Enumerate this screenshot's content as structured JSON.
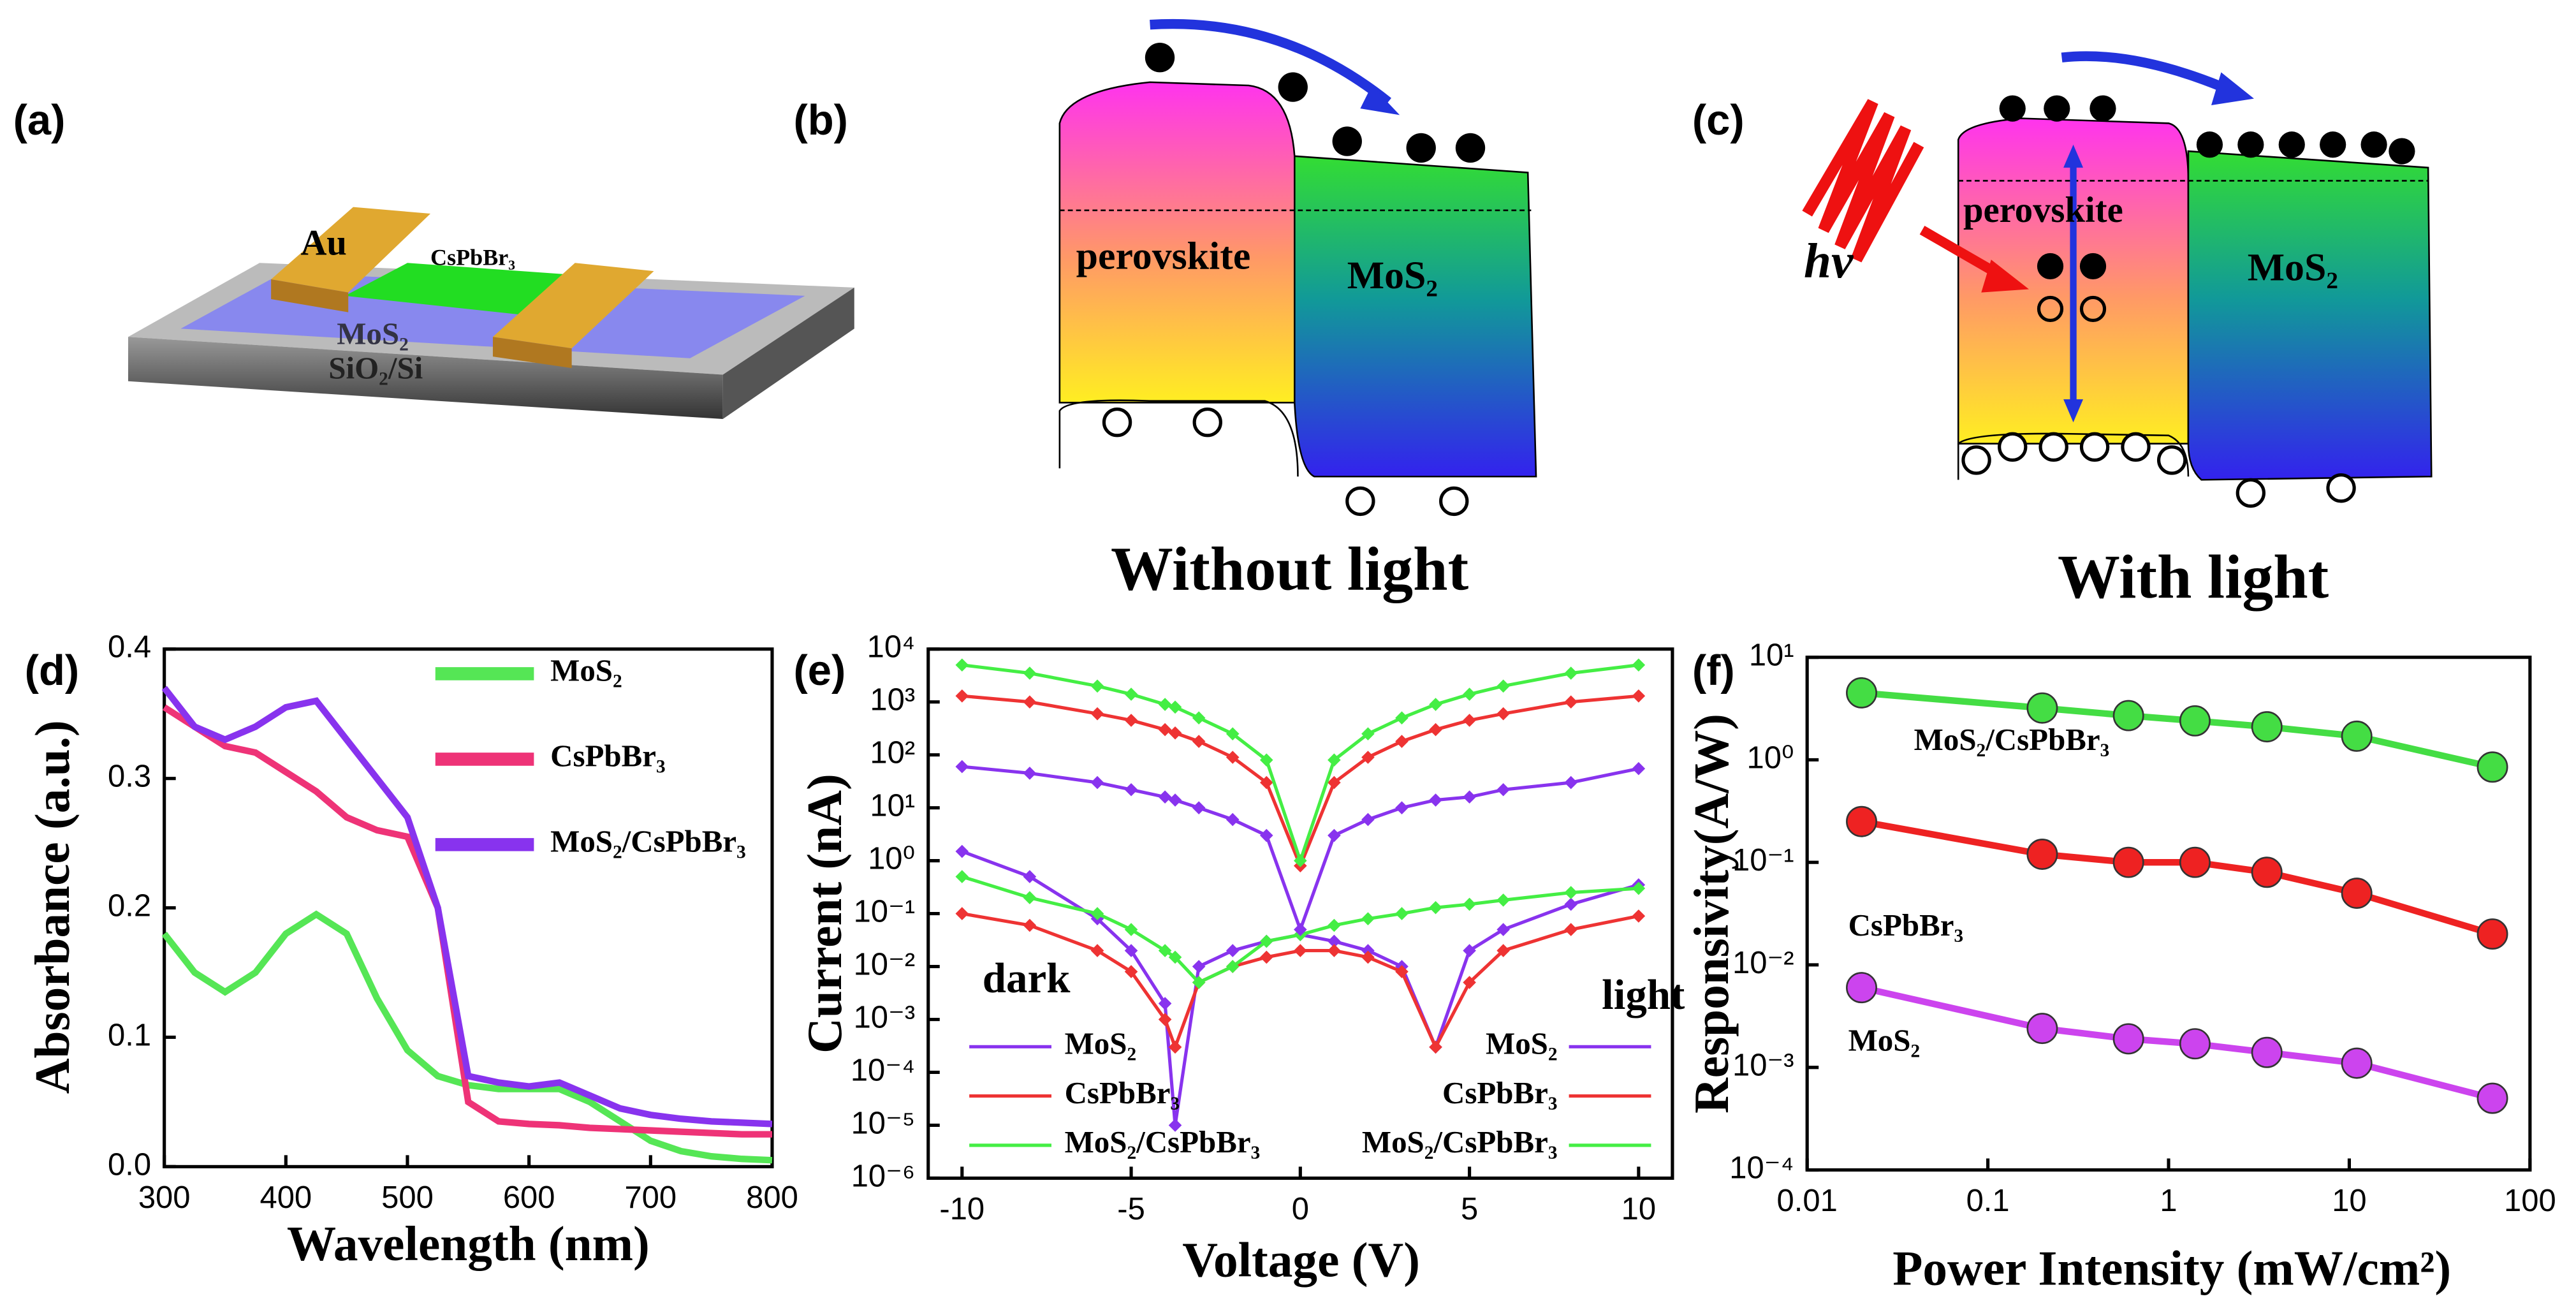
{
  "panels": {
    "a": {
      "label": "(a)",
      "texts": [
        "Au",
        "CsPbBr₃",
        "MoS₂",
        "SiO₂/Si"
      ]
    },
    "b": {
      "label": "(b)",
      "texts": [
        "perovskite",
        "MoS₂"
      ],
      "caption": "Without light"
    },
    "c": {
      "label": "(c)",
      "texts": [
        "perovskite",
        "MoS₂",
        "hv"
      ],
      "caption": "With light"
    }
  },
  "chart_data": [
    {
      "type": "line",
      "label": "(d)",
      "xlabel": "Wavelength (nm)",
      "ylabel": "Absorbance (a.u.)",
      "x": [
        300,
        325,
        350,
        375,
        400,
        425,
        450,
        475,
        500,
        525,
        550,
        575,
        600,
        625,
        650,
        675,
        700,
        725,
        750,
        775,
        800
      ],
      "xlim": [
        300,
        800
      ],
      "xticks": [
        300,
        400,
        500,
        600,
        700,
        800
      ],
      "ylim": [
        0,
        0.4
      ],
      "yticks": [
        {
          "value": 0,
          "label": "0.0"
        },
        0.1,
        0.2,
        0.3,
        0.4
      ],
      "series": [
        {
          "name": "MoS₂",
          "color": "#55e655",
          "values": [
            0.18,
            0.15,
            0.135,
            0.15,
            0.18,
            0.195,
            0.18,
            0.13,
            0.09,
            0.07,
            0.063,
            0.06,
            0.06,
            0.06,
            0.05,
            0.035,
            0.02,
            0.012,
            0.008,
            0.006,
            0.005
          ]
        },
        {
          "name": "CsPbBr₃",
          "color": "#ee3377",
          "values": [
            0.355,
            0.34,
            0.325,
            0.32,
            0.305,
            0.29,
            0.27,
            0.26,
            0.255,
            0.2,
            0.05,
            0.035,
            0.033,
            0.032,
            0.03,
            0.029,
            0.028,
            0.027,
            0.026,
            0.025,
            0.025
          ]
        },
        {
          "name": "MoS₂/CsPbBr₃",
          "color": "#8833ee",
          "values": [
            0.37,
            0.34,
            0.33,
            0.34,
            0.355,
            0.36,
            0.33,
            0.3,
            0.27,
            0.2,
            0.07,
            0.065,
            0.062,
            0.065,
            0.055,
            0.045,
            0.04,
            0.037,
            0.035,
            0.034,
            0.033
          ]
        }
      ]
    },
    {
      "type": "line",
      "label": "(e)",
      "xlabel": "Voltage (V)",
      "ylabel": "Current (nA)",
      "log_y": true,
      "marker": "diamond",
      "x": [
        -10,
        -8,
        -6,
        -5,
        -4,
        -3.7,
        -3,
        -2,
        -1,
        0,
        1,
        2,
        3,
        4,
        5,
        6,
        8,
        10
      ],
      "xlim": [
        -11,
        11
      ],
      "xticks": [
        -10,
        -5,
        0,
        5,
        10
      ],
      "ylim": [
        1e-06,
        10000
      ],
      "yticks": [
        {
          "value": 1e-06,
          "label": "10⁻⁶"
        },
        {
          "value": 1e-05,
          "label": "10⁻⁵"
        },
        {
          "value": 0.0001,
          "label": "10⁻⁴"
        },
        {
          "value": 0.001,
          "label": "10⁻³"
        },
        {
          "value": 0.01,
          "label": "10⁻²"
        },
        {
          "value": 0.1,
          "label": "10⁻¹"
        },
        {
          "value": 1,
          "label": "10⁰"
        },
        {
          "value": 10,
          "label": "10¹"
        },
        {
          "value": 100,
          "label": "10²"
        },
        {
          "value": 1000,
          "label": "10³"
        },
        {
          "value": 10000,
          "label": "10⁴"
        }
      ],
      "annotations": [
        "dark",
        "light"
      ],
      "series": [
        {
          "name": "MoS₂",
          "color": "#8833ee",
          "values": [
            1.5,
            0.5,
            0.08,
            0.02,
            0.002,
            1e-05,
            0.01,
            0.02,
            0.03,
            0.04,
            0.03,
            0.02,
            0.01,
            0.0003,
            0.02,
            0.05,
            0.15,
            0.35
          ]
        },
        {
          "name": "CsPbBr₃",
          "color": "#ee3333",
          "values": [
            0.1,
            0.06,
            0.02,
            0.008,
            0.001,
            0.0003,
            0.005,
            0.01,
            0.015,
            0.02,
            0.02,
            0.015,
            0.008,
            0.0003,
            0.005,
            0.02,
            0.05,
            0.09
          ]
        },
        {
          "name": "MoS₂/CsPbBr₃",
          "color": "#44ee44",
          "values": [
            0.5,
            0.2,
            0.1,
            0.05,
            0.02,
            0.015,
            0.005,
            0.01,
            0.03,
            0.04,
            0.06,
            0.08,
            0.1,
            0.13,
            0.15,
            0.18,
            0.25,
            0.3
          ]
        },
        {
          "name": "MoS₂",
          "color": "#8833ee",
          "values": [
            60,
            45,
            30,
            22,
            16,
            14,
            10,
            6,
            3,
            0.05,
            3,
            6,
            10,
            14,
            16,
            22,
            30,
            55
          ]
        },
        {
          "name": "CsPbBr₃",
          "color": "#ee3333",
          "values": [
            1300,
            1000,
            600,
            450,
            300,
            260,
            180,
            90,
            30,
            0.8,
            30,
            90,
            180,
            300,
            450,
            600,
            1000,
            1300
          ]
        },
        {
          "name": "MoS₂/CsPbBr₃",
          "color": "#44ee44",
          "values": [
            5000,
            3500,
            2000,
            1400,
            900,
            800,
            500,
            250,
            80,
            1,
            80,
            250,
            500,
            900,
            1400,
            2000,
            3500,
            5000
          ]
        }
      ]
    },
    {
      "type": "line",
      "label": "(f)",
      "xlabel": "Power Intensity (mW/cm²)",
      "ylabel": "Responsivity(A/W)",
      "log_x": true,
      "log_y": true,
      "marker": "circle",
      "x": [
        0.02,
        0.2,
        0.6,
        1.4,
        3.5,
        11,
        62
      ],
      "xlim": [
        0.01,
        100
      ],
      "xticks": [
        0.01,
        0.1,
        1,
        10,
        100
      ],
      "ylim": [
        0.0001,
        10
      ],
      "yticks": [
        {
          "value": 0.0001,
          "label": "10⁻⁴"
        },
        {
          "value": 0.001,
          "label": "10⁻³"
        },
        {
          "value": 0.01,
          "label": "10⁻²"
        },
        {
          "value": 0.1,
          "label": "10⁻¹"
        },
        {
          "value": 1,
          "label": "10⁰"
        },
        {
          "value": 10,
          "label": "10¹"
        }
      ],
      "series": [
        {
          "name": "MoS₂/CsPbBr₃",
          "color": "#44dd44",
          "values": [
            4.5,
            3.2,
            2.7,
            2.4,
            2.1,
            1.7,
            0.85
          ]
        },
        {
          "name": "CsPbBr₃",
          "color": "#ee2222",
          "values": [
            0.25,
            0.12,
            0.1,
            0.1,
            0.08,
            0.05,
            0.02
          ]
        },
        {
          "name": "MoS₂",
          "color": "#cc44ee",
          "values": [
            0.006,
            0.0024,
            0.0019,
            0.0017,
            0.0014,
            0.0011,
            0.0005
          ]
        }
      ]
    }
  ]
}
